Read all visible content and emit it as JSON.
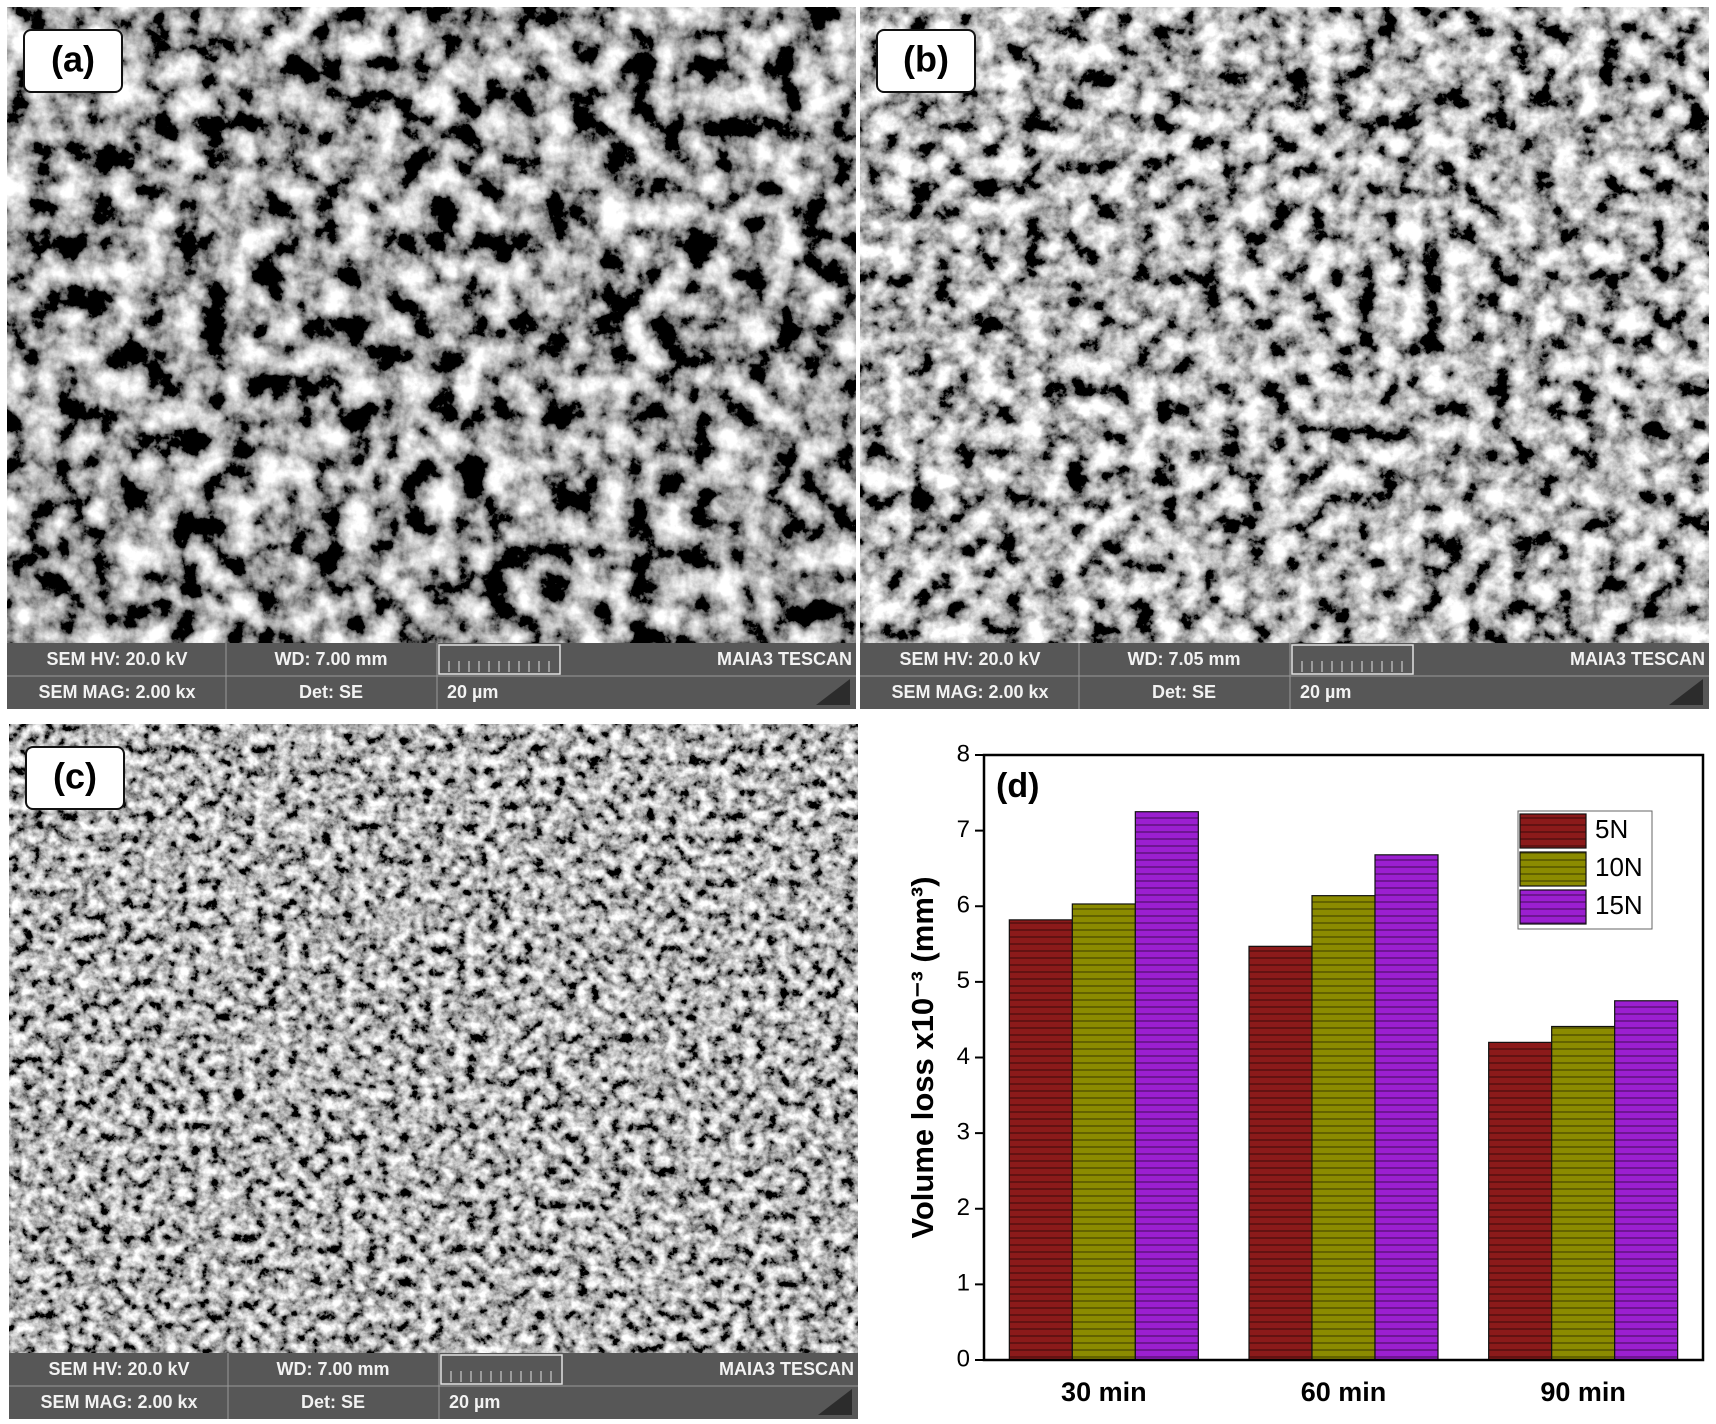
{
  "panels": [
    {
      "label": "(a)",
      "hv": "SEM HV: 20.0 kV",
      "wd": "WD: 7.00 mm",
      "vendor": "MAIA3 TESCAN",
      "mag": "SEM MAG: 2.00 kx",
      "det": "Det: SE",
      "scale": "20 µm"
    },
    {
      "label": "(b)",
      "hv": "SEM HV: 20.0 kV",
      "wd": "WD: 7.05 mm",
      "vendor": "MAIA3 TESCAN",
      "mag": "SEM MAG: 2.00 kx",
      "det": "Det: SE",
      "scale": "20 µm"
    },
    {
      "label": "(c)",
      "hv": "SEM HV: 20.0 kV",
      "wd": "WD: 7.00 mm",
      "vendor": "MAIA3 TESCAN",
      "mag": "SEM MAG: 2.00 kx",
      "det": "Det: SE",
      "scale": "20 µm"
    }
  ],
  "chart_data": {
    "type": "bar",
    "annotation": "(d)",
    "y_label": "Volume loss x10⁻³ (mm³)",
    "categories": [
      "30 min",
      "60 min",
      "90 min"
    ],
    "series": [
      {
        "name": "5N",
        "color": "#8b1a1a",
        "values": [
          5.82,
          5.47,
          4.2
        ]
      },
      {
        "name": "10N",
        "color": "#8b8b00",
        "values": [
          6.03,
          6.14,
          4.41
        ]
      },
      {
        "name": "15N",
        "color": "#9b1fd0",
        "values": [
          7.25,
          6.68,
          4.75
        ]
      }
    ],
    "ylim": [
      0,
      8
    ],
    "yticks": [
      0,
      1,
      2,
      3,
      4,
      5,
      6,
      7,
      8
    ],
    "legend": "upper right"
  }
}
